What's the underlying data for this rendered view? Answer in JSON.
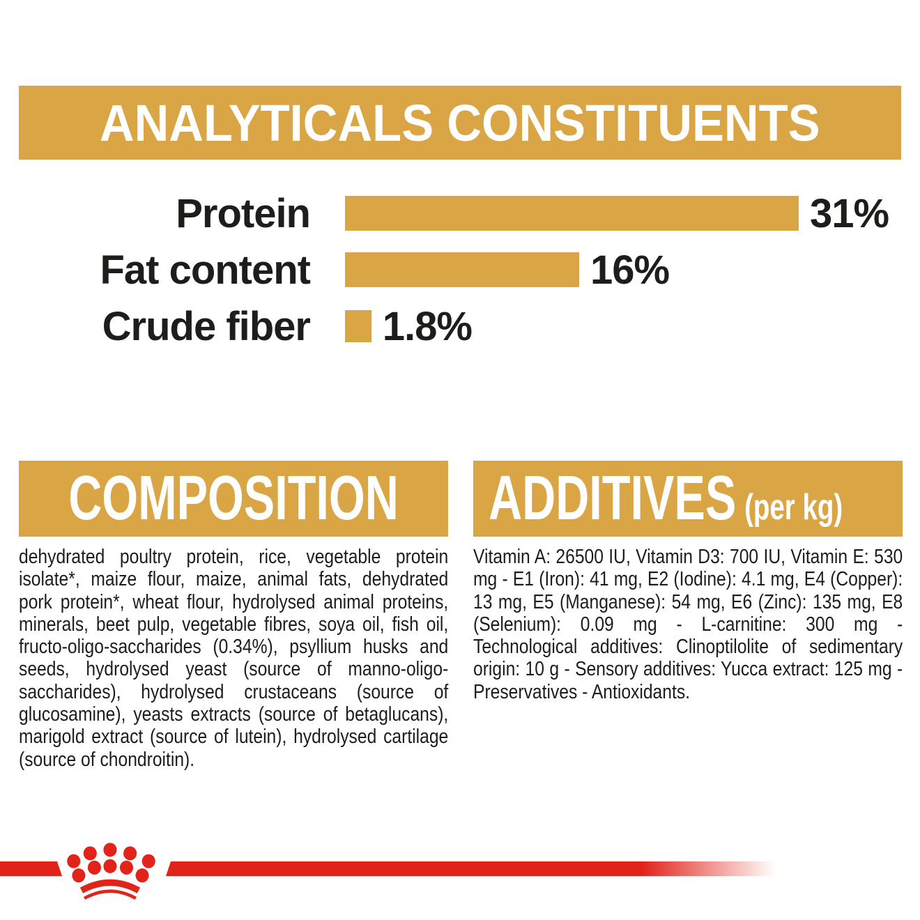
{
  "analyticals": {
    "title": "ANALYTICALS CONSTITUENTS"
  },
  "chart_data": {
    "type": "bar",
    "orientation": "horizontal",
    "title": "ANALYTICALS CONSTITUENTS",
    "categories": [
      "Protein",
      "Fat content",
      "Crude fiber"
    ],
    "values": [
      31,
      16,
      1.8
    ],
    "value_labels": [
      "31%",
      "16%",
      "1.8%"
    ],
    "unit": "%",
    "xlim": [
      0,
      33
    ],
    "bar_color": "#D9A545",
    "grid": "off",
    "legend": "none"
  },
  "composition": {
    "title": "COMPOSITION",
    "text": "dehydrated poultry protein, rice, vegetable protein isolate*, maize flour, maize, animal fats, dehydrated pork protein*, wheat flour, hydrolysed animal proteins, minerals, beet pulp, vegetable fibres, soya oil, fish oil, fructo-oligo-saccharides (0.34%), psyllium husks and seeds, hydrolysed yeast (source of manno-oligo-saccharides), hydrolysed crustaceans (source of glucosamine), yeasts extracts (source of betaglucans), marigold extract (source of lutein), hydrolysed cartilage (source of chondroitin)."
  },
  "additives": {
    "title": "ADDITIVES",
    "title_suffix": "(per kg)",
    "text": "Vitamin A: 26500 IU, Vitamin D3: 700 IU, Vitamin E: 530 mg - E1 (Iron): 41 mg, E2 (Iodine): 4.1 mg, E4 (Copper): 13 mg, E5 (Manganese): 54 mg, E6 (Zinc): 135 mg, E8 (Selenium): 0.09 mg - L-carnitine: 300 mg - Technological additives: Clinoptilolite of sedimentary origin: 10 g - Sensory additives: Yucca extract: 125 mg - Preservatives - Antioxidants."
  },
  "footer": {
    "logo": "royal-canin-crown"
  },
  "colors": {
    "gold": "#D9A545",
    "red": "#E2231A",
    "text": "#1D1D1B",
    "banner_text": "#FFFFFF"
  }
}
